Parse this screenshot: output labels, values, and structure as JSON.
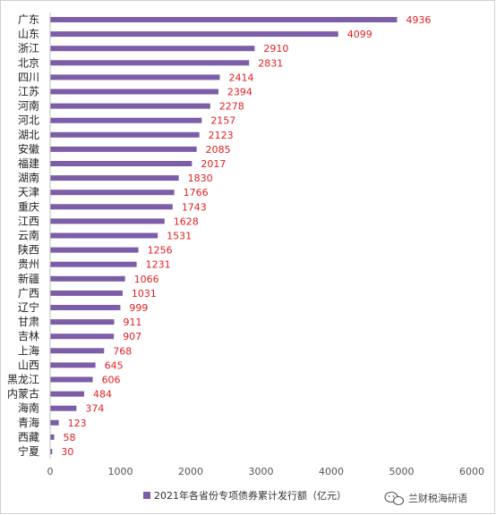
{
  "chart_data": {
    "type": "bar",
    "orientation": "horizontal",
    "categories": [
      "广东",
      "山东",
      "浙江",
      "北京",
      "四川",
      "江苏",
      "河南",
      "河北",
      "湖北",
      "安徽",
      "福建",
      "湖南",
      "天津",
      "重庆",
      "江西",
      "云南",
      "陕西",
      "贵州",
      "新疆",
      "广西",
      "辽宁",
      "甘肃",
      "吉林",
      "上海",
      "山西",
      "黑龙江",
      "内蒙古",
      "海南",
      "青海",
      "西藏",
      "宁夏"
    ],
    "series": [
      {
        "name": "2021年各省份专项债券累计发行额（亿元）",
        "color": "#7b5ea7",
        "values": [
          4936,
          4099,
          2910,
          2831,
          2414,
          2394,
          2278,
          2157,
          2123,
          2085,
          2017,
          1830,
          1766,
          1743,
          1628,
          1531,
          1256,
          1231,
          1066,
          1031,
          999,
          911,
          907,
          768,
          645,
          606,
          484,
          374,
          123,
          58,
          30
        ]
      }
    ],
    "xlim": [
      0,
      6000
    ],
    "xticks": [
      0,
      1000,
      2000,
      3000,
      4000,
      5000,
      6000
    ],
    "value_label_color": "#e02020",
    "grid": false,
    "legend_position": "bottom-left"
  },
  "watermark": {
    "icon": "wechat-icon",
    "text": "兰财税海研语"
  }
}
